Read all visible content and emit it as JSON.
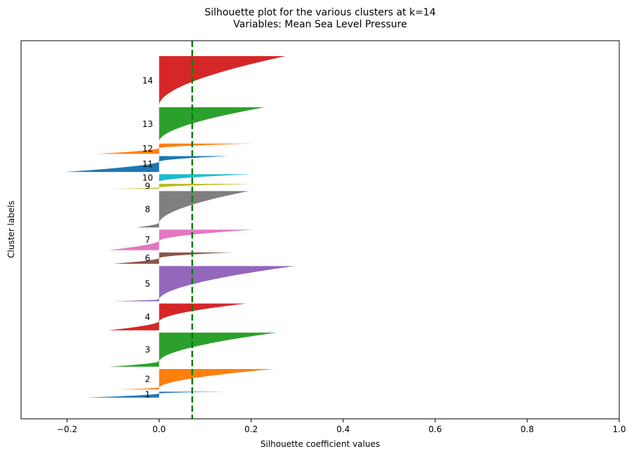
{
  "chart_data": {
    "type": "silhouette",
    "title_line1": "Silhouette plot for the various clusters at k=14",
    "title_line2": "Variables: Mean Sea Level Pressure",
    "xlabel": "Silhouette coefficient values",
    "ylabel": "Cluster labels",
    "xlim": [
      -0.3,
      1.0
    ],
    "xticks": [
      -0.2,
      0.0,
      0.2,
      0.4,
      0.6,
      0.8,
      1.0
    ],
    "xtick_labels": [
      "−0.2",
      "0.0",
      "0.2",
      "0.4",
      "0.6",
      "0.8",
      "1.0"
    ],
    "average_silhouette": 0.072,
    "average_line_color": "#008000",
    "y_extent": 540,
    "clusters": [
      {
        "label": "1",
        "color": "#1f77b4",
        "y_lower": 10,
        "size": 26,
        "min": -0.16,
        "max": 0.145,
        "zero_frac": 0.7
      },
      {
        "label": "2",
        "color": "#ff7f0e",
        "y_lower": 46,
        "size": 90,
        "min": -0.09,
        "max": 0.25,
        "zero_frac": 0.08
      },
      {
        "label": "3",
        "color": "#2ca02c",
        "y_lower": 146,
        "size": 150,
        "min": -0.11,
        "max": 0.255,
        "zero_frac": 0.15
      },
      {
        "label": "4",
        "color": "#d62728",
        "y_lower": 306,
        "size": 118,
        "min": -0.11,
        "max": 0.19,
        "zero_frac": 0.33
      },
      {
        "label": "5",
        "color": "#9467bd",
        "y_lower": 434,
        "size": 155,
        "min": -0.1,
        "max": 0.295,
        "zero_frac": 0.05
      },
      {
        "label": "6",
        "color": "#8c564b",
        "y_lower": 599,
        "size": 50,
        "min": -0.1,
        "max": 0.16,
        "zero_frac": 0.5
      },
      {
        "label": "7",
        "color": "#e377c2",
        "y_lower": 659,
        "size": 90,
        "min": -0.11,
        "max": 0.205,
        "zero_frac": 0.45
      },
      {
        "label": "8",
        "color": "#7f7f7f",
        "y_lower": 759,
        "size": 160,
        "min": -0.05,
        "max": 0.195,
        "zero_frac": 0.12
      },
      {
        "label": "9",
        "color": "#bcbd22",
        "y_lower": 929,
        "size": 22,
        "min": -0.11,
        "max": 0.21,
        "zero_frac": 0.25
      },
      {
        "label": "10",
        "color": "#17becf",
        "y_lower": 961,
        "size": 32,
        "min": 0.0,
        "max": 0.2,
        "zero_frac": 0.0
      },
      {
        "label": "11",
        "color": "#1f77b4",
        "y_lower": 1003,
        "size": 70,
        "min": -0.205,
        "max": 0.15,
        "zero_frac": 0.65
      },
      {
        "label": "12",
        "color": "#ff7f0e",
        "y_lower": 1083,
        "size": 45,
        "min": -0.135,
        "max": 0.205,
        "zero_frac": 0.55
      },
      {
        "label": "13",
        "color": "#2ca02c",
        "y_lower": 1138,
        "size": 150,
        "min": 0.0,
        "max": 0.23,
        "zero_frac": 0.0
      },
      {
        "label": "14",
        "color": "#d62728",
        "y_lower": 1298,
        "size": 215,
        "min": 0.0,
        "max": 0.275,
        "zero_frac": 0.0
      }
    ]
  }
}
